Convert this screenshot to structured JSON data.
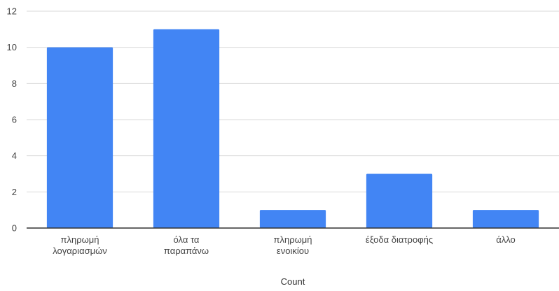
{
  "chart_data": {
    "type": "bar",
    "categories": [
      [
        "πληρωμή",
        "λογαριασμών"
      ],
      [
        "όλα τα",
        "παραπάνω"
      ],
      [
        "πληρωμή",
        "ενοικίου"
      ],
      [
        "έξοδα διατροφής"
      ],
      [
        "άλλο"
      ]
    ],
    "values": [
      10,
      11,
      1,
      3,
      1
    ],
    "xlabel": "Count",
    "ylabel": "",
    "ylim": [
      0,
      12
    ],
    "yticks": [
      0,
      2,
      4,
      6,
      8,
      10,
      12
    ],
    "grid": true,
    "legend": "none",
    "bar_color": "#4285F4",
    "grid_color": "#d9d9d9",
    "axis_color": "#333333"
  }
}
